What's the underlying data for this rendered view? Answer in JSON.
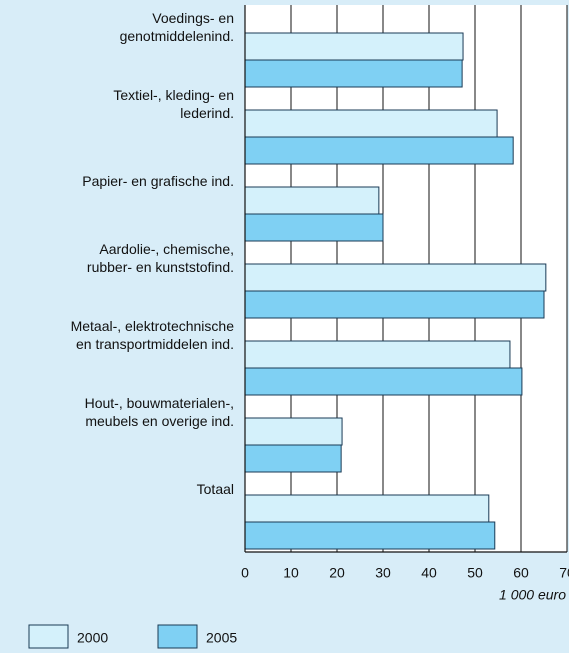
{
  "chart_data": {
    "type": "bar",
    "orientation": "horizontal",
    "categories": [
      "Voedings- en\ngenotmiddelenind.",
      "Textiel-, kleding- en\nlederind.",
      "Papier- en grafische ind.",
      "Aardolie-, chemische,\nrubber- en kunststofind.",
      "Metaal-, elektrotechnische\nen transportmiddelen ind.",
      "Hout-, bouwmaterialen-,\nmeubels en overige ind.",
      "Totaal"
    ],
    "series": [
      {
        "name": "2000",
        "color": "#d4f1fb",
        "values": [
          47.4,
          54.8,
          29.1,
          65.4,
          57.6,
          21.1,
          53.0
        ]
      },
      {
        "name": "2005",
        "color": "#7fd0f3",
        "values": [
          47.2,
          58.3,
          30.0,
          65.0,
          60.2,
          20.9,
          54.3
        ]
      }
    ],
    "xlabel": "1 000 euro",
    "xlim": [
      0,
      70
    ],
    "xticks": [
      0,
      10,
      20,
      30,
      40,
      50,
      60,
      70
    ],
    "grid": true,
    "legend": "bottom-left"
  }
}
